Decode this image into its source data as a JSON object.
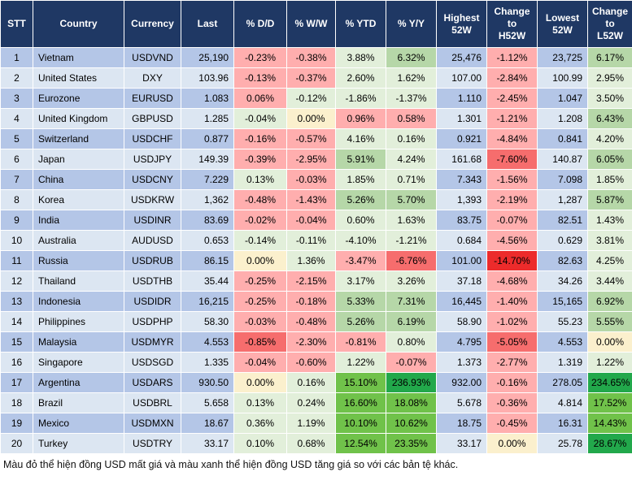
{
  "colors": {
    "header_bg": "#1F3864",
    "header_text": "#FFFFFF",
    "row_odd": "#B4C6E7",
    "row_even": "#DCE6F2",
    "grid": "#FFFFFF",
    "cell": {
      "p": "#FFAEAE",
      "r": "#F66D6D",
      "R": "#EC2B2B",
      "g": "#E2EFDA",
      "G": "#B6D7A8",
      "B": "#70C24A",
      "D": "#22A84B",
      "y": "#FBF0CD"
    },
    "cell_legend": {
      "p": "light-red: USD slightly weaker",
      "r": "medium-red: USD notably weaker",
      "R": "strong-red: USD much weaker",
      "g": "light-green: USD slightly stronger",
      "G": "medium-green: USD stronger",
      "B": "bright-green: USD much stronger",
      "D": "dark-green: USD extremely stronger",
      "y": "yellow: unchanged (0.00%)"
    }
  },
  "chart_data": {
    "type": "table",
    "columns": [
      "STT",
      "Country",
      "Currency",
      "Last",
      "% D/D",
      "% W/W",
      "% YTD",
      "% Y/Y",
      "Highest 52W",
      "Change to H52W",
      "Lowest 52W",
      "Change to L52W"
    ],
    "rows": [
      {
        "stt": "1",
        "country": "Vietnam",
        "currency": "USDVND",
        "last": "25,190",
        "dd": {
          "v": "-0.23%",
          "c": "p"
        },
        "ww": {
          "v": "-0.38%",
          "c": "p"
        },
        "ytd": {
          "v": "3.88%",
          "c": "g"
        },
        "yy": {
          "v": "6.32%",
          "c": "G"
        },
        "h52": "25,476",
        "ch_h": {
          "v": "-1.12%",
          "c": "p"
        },
        "l52": "23,725",
        "ch_l": {
          "v": "6.17%",
          "c": "G"
        }
      },
      {
        "stt": "2",
        "country": "United States",
        "currency": "DXY",
        "last": "103.96",
        "dd": {
          "v": "-0.13%",
          "c": "p"
        },
        "ww": {
          "v": "-0.37%",
          "c": "p"
        },
        "ytd": {
          "v": "2.60%",
          "c": "g"
        },
        "yy": {
          "v": "1.62%",
          "c": "g"
        },
        "h52": "107.00",
        "ch_h": {
          "v": "-2.84%",
          "c": "p"
        },
        "l52": "100.99",
        "ch_l": {
          "v": "2.95%",
          "c": "g"
        }
      },
      {
        "stt": "3",
        "country": "Eurozone",
        "currency": "EURUSD",
        "last": "1.083",
        "dd": {
          "v": "0.06%",
          "c": "p"
        },
        "ww": {
          "v": "-0.12%",
          "c": "g"
        },
        "ytd": {
          "v": "-1.86%",
          "c": "g"
        },
        "yy": {
          "v": "-1.37%",
          "c": "g"
        },
        "h52": "1.110",
        "ch_h": {
          "v": "-2.45%",
          "c": "p"
        },
        "l52": "1.047",
        "ch_l": {
          "v": "3.50%",
          "c": "g"
        }
      },
      {
        "stt": "4",
        "country": "United Kingdom",
        "currency": "GBPUSD",
        "last": "1.285",
        "dd": {
          "v": "-0.04%",
          "c": "g"
        },
        "ww": {
          "v": "0.00%",
          "c": "y"
        },
        "ytd": {
          "v": "0.96%",
          "c": "p"
        },
        "yy": {
          "v": "0.58%",
          "c": "p"
        },
        "h52": "1.301",
        "ch_h": {
          "v": "-1.21%",
          "c": "p"
        },
        "l52": "1.208",
        "ch_l": {
          "v": "6.43%",
          "c": "G"
        }
      },
      {
        "stt": "5",
        "country": "Switzerland",
        "currency": "USDCHF",
        "last": "0.877",
        "dd": {
          "v": "-0.16%",
          "c": "p"
        },
        "ww": {
          "v": "-0.57%",
          "c": "p"
        },
        "ytd": {
          "v": "4.16%",
          "c": "g"
        },
        "yy": {
          "v": "0.16%",
          "c": "g"
        },
        "h52": "0.921",
        "ch_h": {
          "v": "-4.84%",
          "c": "p"
        },
        "l52": "0.841",
        "ch_l": {
          "v": "4.20%",
          "c": "g"
        }
      },
      {
        "stt": "6",
        "country": "Japan",
        "currency": "USDJPY",
        "last": "149.39",
        "dd": {
          "v": "-0.39%",
          "c": "p"
        },
        "ww": {
          "v": "-2.95%",
          "c": "p"
        },
        "ytd": {
          "v": "5.91%",
          "c": "G"
        },
        "yy": {
          "v": "4.24%",
          "c": "g"
        },
        "h52": "161.68",
        "ch_h": {
          "v": "-7.60%",
          "c": "r"
        },
        "l52": "140.87",
        "ch_l": {
          "v": "6.05%",
          "c": "G"
        }
      },
      {
        "stt": "7",
        "country": "China",
        "currency": "USDCNY",
        "last": "7.229",
        "dd": {
          "v": "0.13%",
          "c": "g"
        },
        "ww": {
          "v": "-0.03%",
          "c": "p"
        },
        "ytd": {
          "v": "1.85%",
          "c": "g"
        },
        "yy": {
          "v": "0.71%",
          "c": "g"
        },
        "h52": "7.343",
        "ch_h": {
          "v": "-1.56%",
          "c": "p"
        },
        "l52": "7.098",
        "ch_l": {
          "v": "1.85%",
          "c": "g"
        }
      },
      {
        "stt": "8",
        "country": "Korea",
        "currency": "USDKRW",
        "last": "1,362",
        "dd": {
          "v": "-0.48%",
          "c": "p"
        },
        "ww": {
          "v": "-1.43%",
          "c": "p"
        },
        "ytd": {
          "v": "5.26%",
          "c": "G"
        },
        "yy": {
          "v": "5.70%",
          "c": "G"
        },
        "h52": "1,393",
        "ch_h": {
          "v": "-2.19%",
          "c": "p"
        },
        "l52": "1,287",
        "ch_l": {
          "v": "5.87%",
          "c": "G"
        }
      },
      {
        "stt": "9",
        "country": "India",
        "currency": "USDINR",
        "last": "83.69",
        "dd": {
          "v": "-0.02%",
          "c": "p"
        },
        "ww": {
          "v": "-0.04%",
          "c": "p"
        },
        "ytd": {
          "v": "0.60%",
          "c": "g"
        },
        "yy": {
          "v": "1.63%",
          "c": "g"
        },
        "h52": "83.75",
        "ch_h": {
          "v": "-0.07%",
          "c": "p"
        },
        "l52": "82.51",
        "ch_l": {
          "v": "1.43%",
          "c": "g"
        }
      },
      {
        "stt": "10",
        "country": "Australia",
        "currency": "AUDUSD",
        "last": "0.653",
        "dd": {
          "v": "-0.14%",
          "c": "g"
        },
        "ww": {
          "v": "-0.11%",
          "c": "g"
        },
        "ytd": {
          "v": "-4.10%",
          "c": "g"
        },
        "yy": {
          "v": "-1.21%",
          "c": "g"
        },
        "h52": "0.684",
        "ch_h": {
          "v": "-4.56%",
          "c": "p"
        },
        "l52": "0.629",
        "ch_l": {
          "v": "3.81%",
          "c": "g"
        }
      },
      {
        "stt": "11",
        "country": "Russia",
        "currency": "USDRUB",
        "last": "86.15",
        "dd": {
          "v": "0.00%",
          "c": "y"
        },
        "ww": {
          "v": "1.36%",
          "c": "g"
        },
        "ytd": {
          "v": "-3.47%",
          "c": "p"
        },
        "yy": {
          "v": "-6.76%",
          "c": "r"
        },
        "h52": "101.00",
        "ch_h": {
          "v": "-14.70%",
          "c": "R"
        },
        "l52": "82.63",
        "ch_l": {
          "v": "4.25%",
          "c": "g"
        }
      },
      {
        "stt": "12",
        "country": "Thailand",
        "currency": "USDTHB",
        "last": "35.44",
        "dd": {
          "v": "-0.25%",
          "c": "p"
        },
        "ww": {
          "v": "-2.15%",
          "c": "p"
        },
        "ytd": {
          "v": "3.17%",
          "c": "g"
        },
        "yy": {
          "v": "3.26%",
          "c": "g"
        },
        "h52": "37.18",
        "ch_h": {
          "v": "-4.68%",
          "c": "p"
        },
        "l52": "34.26",
        "ch_l": {
          "v": "3.44%",
          "c": "g"
        }
      },
      {
        "stt": "13",
        "country": "Indonesia",
        "currency": "USDIDR",
        "last": "16,215",
        "dd": {
          "v": "-0.25%",
          "c": "p"
        },
        "ww": {
          "v": "-0.18%",
          "c": "p"
        },
        "ytd": {
          "v": "5.33%",
          "c": "G"
        },
        "yy": {
          "v": "7.31%",
          "c": "G"
        },
        "h52": "16,445",
        "ch_h": {
          "v": "-1.40%",
          "c": "p"
        },
        "l52": "15,165",
        "ch_l": {
          "v": "6.92%",
          "c": "G"
        }
      },
      {
        "stt": "14",
        "country": "Philippines",
        "currency": "USDPHP",
        "last": "58.30",
        "dd": {
          "v": "-0.03%",
          "c": "p"
        },
        "ww": {
          "v": "-0.48%",
          "c": "p"
        },
        "ytd": {
          "v": "5.26%",
          "c": "G"
        },
        "yy": {
          "v": "6.19%",
          "c": "G"
        },
        "h52": "58.90",
        "ch_h": {
          "v": "-1.02%",
          "c": "p"
        },
        "l52": "55.23",
        "ch_l": {
          "v": "5.55%",
          "c": "G"
        }
      },
      {
        "stt": "15",
        "country": "Malaysia",
        "currency": "USDMYR",
        "last": "4.553",
        "dd": {
          "v": "-0.85%",
          "c": "r"
        },
        "ww": {
          "v": "-2.30%",
          "c": "p"
        },
        "ytd": {
          "v": "-0.81%",
          "c": "p"
        },
        "yy": {
          "v": "0.80%",
          "c": "g"
        },
        "h52": "4.795",
        "ch_h": {
          "v": "-5.05%",
          "c": "r"
        },
        "l52": "4.553",
        "ch_l": {
          "v": "0.00%",
          "c": "y"
        }
      },
      {
        "stt": "16",
        "country": "Singapore",
        "currency": "USDSGD",
        "last": "1.335",
        "dd": {
          "v": "-0.04%",
          "c": "p"
        },
        "ww": {
          "v": "-0.60%",
          "c": "p"
        },
        "ytd": {
          "v": "1.22%",
          "c": "g"
        },
        "yy": {
          "v": "-0.07%",
          "c": "p"
        },
        "h52": "1.373",
        "ch_h": {
          "v": "-2.77%",
          "c": "p"
        },
        "l52": "1.319",
        "ch_l": {
          "v": "1.22%",
          "c": "g"
        }
      },
      {
        "stt": "17",
        "country": "Argentina",
        "currency": "USDARS",
        "last": "930.50",
        "dd": {
          "v": "0.00%",
          "c": "y"
        },
        "ww": {
          "v": "0.16%",
          "c": "g"
        },
        "ytd": {
          "v": "15.10%",
          "c": "B"
        },
        "yy": {
          "v": "236.93%",
          "c": "D"
        },
        "h52": "932.00",
        "ch_h": {
          "v": "-0.16%",
          "c": "p"
        },
        "l52": "278.05",
        "ch_l": {
          "v": "234.65%",
          "c": "D"
        }
      },
      {
        "stt": "18",
        "country": "Brazil",
        "currency": "USDBRL",
        "last": "5.658",
        "dd": {
          "v": "0.13%",
          "c": "g"
        },
        "ww": {
          "v": "0.24%",
          "c": "g"
        },
        "ytd": {
          "v": "16.60%",
          "c": "B"
        },
        "yy": {
          "v": "18.08%",
          "c": "B"
        },
        "h52": "5.678",
        "ch_h": {
          "v": "-0.36%",
          "c": "p"
        },
        "l52": "4.814",
        "ch_l": {
          "v": "17.52%",
          "c": "B"
        }
      },
      {
        "stt": "19",
        "country": "Mexico",
        "currency": "USDMXN",
        "last": "18.67",
        "dd": {
          "v": "0.36%",
          "c": "g"
        },
        "ww": {
          "v": "1.19%",
          "c": "g"
        },
        "ytd": {
          "v": "10.10%",
          "c": "B"
        },
        "yy": {
          "v": "10.62%",
          "c": "B"
        },
        "h52": "18.75",
        "ch_h": {
          "v": "-0.45%",
          "c": "p"
        },
        "l52": "16.31",
        "ch_l": {
          "v": "14.43%",
          "c": "B"
        }
      },
      {
        "stt": "20",
        "country": "Turkey",
        "currency": "USDTRY",
        "last": "33.17",
        "dd": {
          "v": "0.10%",
          "c": "g"
        },
        "ww": {
          "v": "0.68%",
          "c": "g"
        },
        "ytd": {
          "v": "12.54%",
          "c": "B"
        },
        "yy": {
          "v": "23.35%",
          "c": "B"
        },
        "h52": "33.17",
        "ch_h": {
          "v": "0.00%",
          "c": "y"
        },
        "l52": "25.78",
        "ch_l": {
          "v": "28.67%",
          "c": "D"
        }
      }
    ]
  },
  "footer": {
    "note": "Màu đỏ thể hiện đồng USD mất giá và màu xanh thể hiện đồng USD tăng giá so với các bản tệ khác."
  }
}
